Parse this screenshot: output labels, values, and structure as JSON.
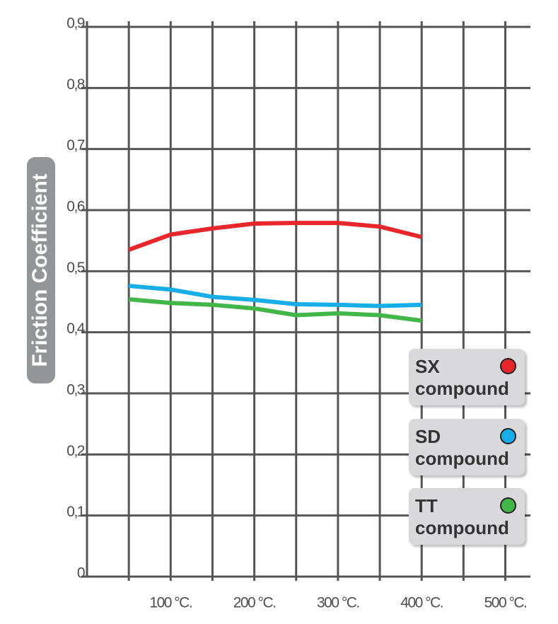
{
  "chart_data": {
    "type": "line",
    "y_label": "Friction Coefficient",
    "xlim": [
      0,
      530
    ],
    "xticks": [
      {
        "value": 100,
        "label": "100 °C."
      },
      {
        "value": 200,
        "label": "200 °C."
      },
      {
        "value": 300,
        "label": "300 °C."
      },
      {
        "value": 400,
        "label": "400 °C."
      },
      {
        "value": 500,
        "label": "500 °C."
      }
    ],
    "x_minor_grid": [
      50,
      150,
      250,
      350,
      450
    ],
    "ylim": [
      0,
      0.9
    ],
    "yticks": [
      0,
      {
        "value": 0.1,
        "label": "0,1"
      },
      {
        "value": 0.2,
        "label": "0,2"
      },
      {
        "value": 0.3,
        "label": "0,3"
      },
      {
        "value": 0.4,
        "label": "0,4"
      },
      {
        "value": 0.5,
        "label": "0,5"
      },
      {
        "value": 0.6,
        "label": "0,6"
      },
      {
        "value": 0.7,
        "label": "0,7"
      },
      {
        "value": 0.8,
        "label": "0,8"
      },
      {
        "value": 0.9,
        "label": "0,9"
      }
    ],
    "grid": true,
    "x": [
      50,
      100,
      150,
      200,
      250,
      300,
      350,
      400
    ],
    "series": [
      {
        "name": "SX compound",
        "color": "#e8262b",
        "values": [
          0.535,
          0.56,
          0.57,
          0.578,
          0.579,
          0.579,
          0.573,
          0.556
        ]
      },
      {
        "name": "SD compound",
        "color": "#17aee8",
        "values": [
          0.476,
          0.47,
          0.458,
          0.453,
          0.446,
          0.445,
          0.443,
          0.445
        ]
      },
      {
        "name": "TT compound",
        "color": "#43b649",
        "values": [
          0.454,
          0.448,
          0.445,
          0.439,
          0.428,
          0.431,
          0.428,
          0.419
        ]
      }
    ],
    "legend": "right"
  }
}
